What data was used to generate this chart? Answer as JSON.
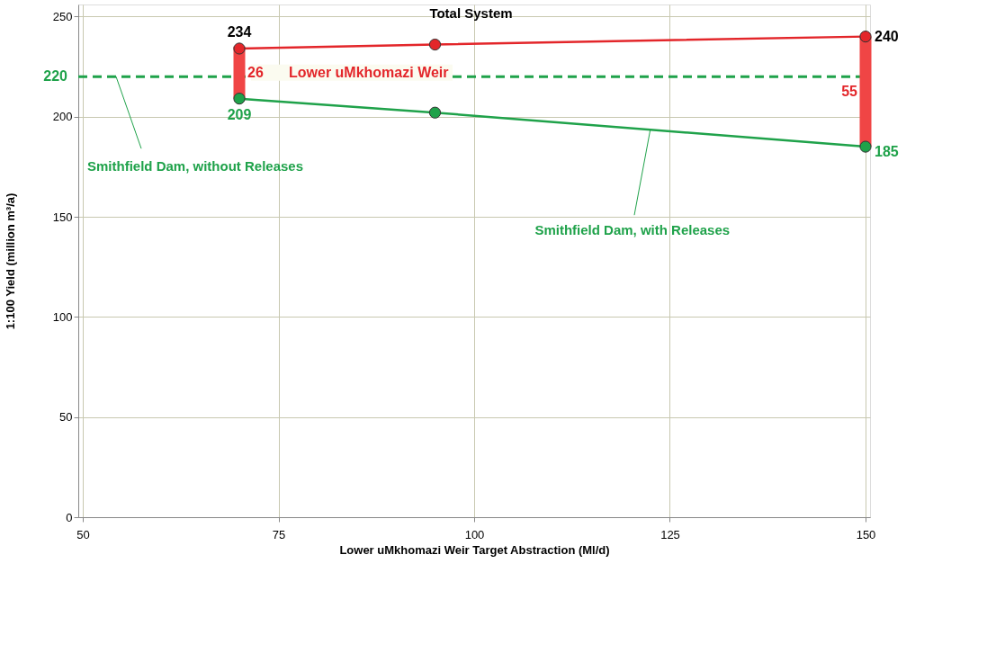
{
  "chart_data": {
    "type": "line",
    "xlabel": "Lower uMkhomazi Weir Target Abstraction (Ml/d)",
    "ylabel": "1:100 Yield (million m³/a)",
    "x": [
      70,
      95,
      150
    ],
    "series": [
      {
        "name": "Total System",
        "color": "#e3262a",
        "values": [
          234,
          236,
          240
        ],
        "value_labels": [
          "234",
          null,
          "240"
        ]
      },
      {
        "name": "Smithfield Dam, with Releases",
        "color": "#1fa24a",
        "values": [
          209,
          202,
          185
        ],
        "value_labels": [
          "209",
          null,
          "185"
        ]
      },
      {
        "type": "bar",
        "color": "#f04545",
        "base": [
          209,
          null,
          185
        ],
        "values": [
          26,
          null,
          55
        ],
        "value_labels": [
          "26",
          null,
          "55"
        ]
      }
    ],
    "ref_lines": [
      {
        "axis": "y",
        "value": 220,
        "label": "Smithfield Dam, without Releases",
        "color": "#1fa24a",
        "line_style": "dashed"
      }
    ],
    "annotations": [
      "220",
      "Lower uMkhomazi Weir"
    ],
    "xlim": [
      50,
      150
    ],
    "xticks": [
      50,
      75,
      100,
      125,
      150
    ],
    "ylim": [
      0,
      256
    ],
    "yticks": [
      0,
      50,
      100,
      150,
      200,
      250
    ],
    "grid": true,
    "legend": false,
    "marker": "circle",
    "line_style": "solid"
  }
}
